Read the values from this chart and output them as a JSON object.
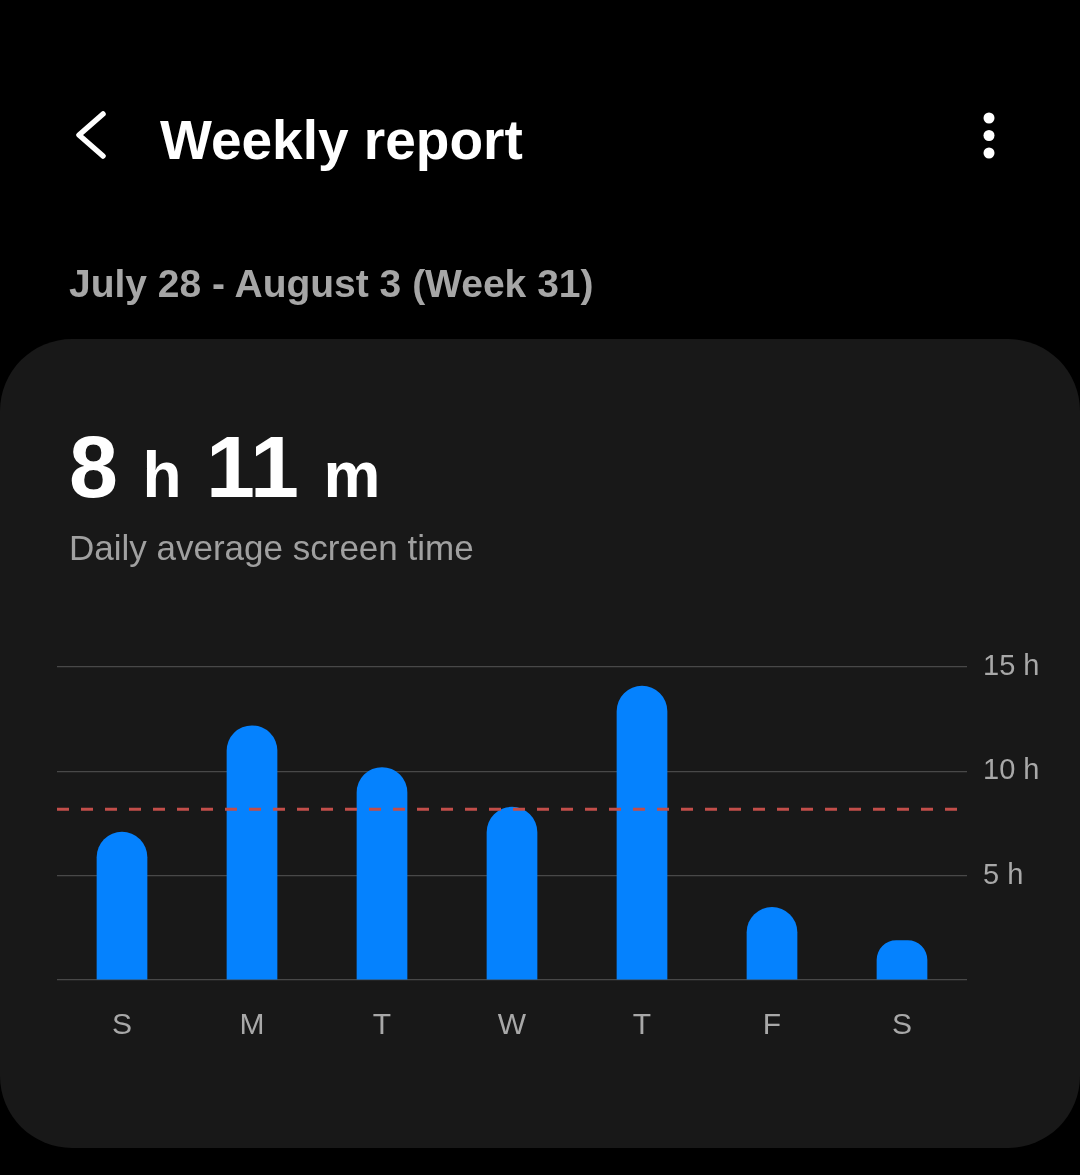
{
  "chart_data": {
    "type": "bar",
    "title": "Weekly report",
    "subtitle": "July 28 - August 3 (Week 31)",
    "annotations": [
      "8 h 11 m",
      "Daily average screen time"
    ],
    "categories": [
      "S",
      "M",
      "T",
      "W",
      "T",
      "F",
      "S"
    ],
    "values": [
      7.1,
      12.2,
      10.2,
      8.3,
      14.1,
      3.5,
      1.9
    ],
    "color": "#0582fe",
    "ylim": [
      0,
      15
    ],
    "yticks": [
      {
        "value": 0,
        "label": null
      },
      {
        "value": 5,
        "label": "5 h"
      },
      {
        "value": 10,
        "label": "10 h"
      },
      {
        "value": 15,
        "label": "15 h"
      }
    ],
    "grid": "y",
    "ref_lines": [
      {
        "axis": "y",
        "value": 8.18,
        "color": "#c24e4a",
        "line_style": "dashed"
      }
    ]
  }
}
